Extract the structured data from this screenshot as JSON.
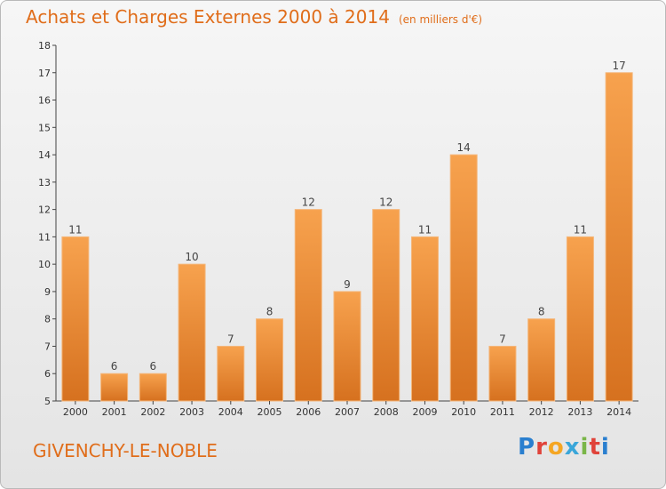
{
  "title": "Achats et Charges Externes 2000 à 2014",
  "unit_label": "(en milliers d'€)",
  "commune": "GIVENCHY-LE-NOBLE",
  "logo": {
    "text": "Proxiti",
    "letter_colors": [
      "#2a7fcf",
      "#e0433a",
      "#f5a623",
      "#3aa6d9",
      "#7ab648",
      "#e0433a",
      "#2a7fcf"
    ]
  },
  "colors": {
    "accent": "#e06d1a",
    "bar_top": "#f7a24e",
    "bar_bottom": "#d87220",
    "bar_edge": "#f4b67a"
  },
  "chart_data": {
    "type": "bar",
    "title": "Achats et Charges Externes 2000 à 2014",
    "xlabel": "",
    "ylabel": "",
    "categories": [
      "2000",
      "2001",
      "2002",
      "2003",
      "2004",
      "2005",
      "2006",
      "2007",
      "2008",
      "2009",
      "2010",
      "2011",
      "2012",
      "2013",
      "2014"
    ],
    "values": [
      11,
      6,
      6,
      10,
      7,
      8,
      12,
      9,
      12,
      11,
      14,
      7,
      8,
      11,
      17
    ],
    "ylim": [
      5,
      18
    ],
    "yticks": [
      5,
      6,
      7,
      8,
      9,
      10,
      11,
      12,
      13,
      14,
      15,
      16,
      17,
      18
    ],
    "grid": false,
    "legend": "none"
  }
}
